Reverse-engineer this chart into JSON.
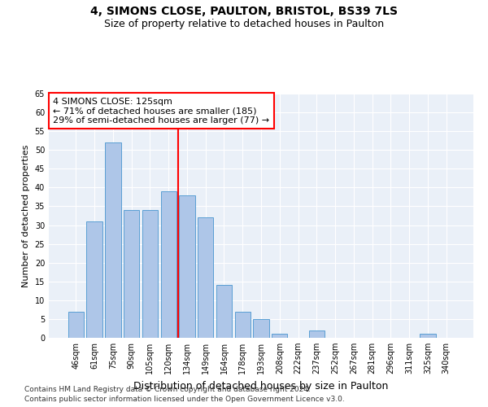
{
  "title": "4, SIMONS CLOSE, PAULTON, BRISTOL, BS39 7LS",
  "subtitle": "Size of property relative to detached houses in Paulton",
  "xlabel": "Distribution of detached houses by size in Paulton",
  "ylabel": "Number of detached properties",
  "categories": [
    "46sqm",
    "61sqm",
    "75sqm",
    "90sqm",
    "105sqm",
    "120sqm",
    "134sqm",
    "149sqm",
    "164sqm",
    "178sqm",
    "193sqm",
    "208sqm",
    "222sqm",
    "237sqm",
    "252sqm",
    "267sqm",
    "281sqm",
    "296sqm",
    "311sqm",
    "325sqm",
    "340sqm"
  ],
  "values": [
    7,
    31,
    52,
    34,
    34,
    39,
    38,
    32,
    14,
    7,
    5,
    1,
    0,
    2,
    0,
    0,
    0,
    0,
    0,
    1,
    0
  ],
  "bar_color": "#aec6e8",
  "bar_edge_color": "#5a9fd4",
  "vline_x_index": 6,
  "vline_color": "red",
  "annotation_text": "4 SIMONS CLOSE: 125sqm\n← 71% of detached houses are smaller (185)\n29% of semi-detached houses are larger (77) →",
  "annotation_box_color": "white",
  "annotation_box_edge": "red",
  "ylim": [
    0,
    65
  ],
  "yticks": [
    0,
    5,
    10,
    15,
    20,
    25,
    30,
    35,
    40,
    45,
    50,
    55,
    60,
    65
  ],
  "background_color": "#eaf0f8",
  "footer_line1": "Contains HM Land Registry data © Crown copyright and database right 2024.",
  "footer_line2": "Contains public sector information licensed under the Open Government Licence v3.0.",
  "title_fontsize": 10,
  "subtitle_fontsize": 9,
  "xlabel_fontsize": 9,
  "ylabel_fontsize": 8,
  "tick_fontsize": 7,
  "annotation_fontsize": 8,
  "footer_fontsize": 6.5
}
